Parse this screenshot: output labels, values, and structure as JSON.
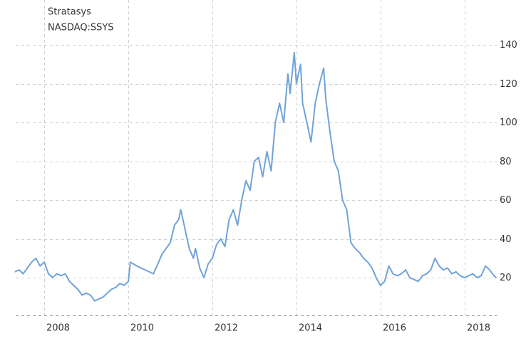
{
  "chart_data": {
    "type": "line",
    "title": "Stratasys",
    "subtitle": "NASDAQ:SSYS",
    "x": [
      2007.3,
      2007.4,
      2007.5,
      2007.6,
      2007.7,
      2007.8,
      2007.9,
      2008.0,
      2008.1,
      2008.2,
      2008.3,
      2008.4,
      2008.5,
      2008.6,
      2008.7,
      2008.8,
      2008.9,
      2009.0,
      2009.1,
      2009.2,
      2009.3,
      2009.4,
      2009.5,
      2009.6,
      2009.7,
      2009.8,
      2009.9,
      2010.0,
      2010.05,
      2010.2,
      2010.4,
      2010.6,
      2010.8,
      2010.9,
      2011.0,
      2011.1,
      2011.2,
      2011.25,
      2011.35,
      2011.45,
      2011.55,
      2011.6,
      2011.7,
      2011.8,
      2011.9,
      2012.0,
      2012.1,
      2012.2,
      2012.3,
      2012.4,
      2012.5,
      2012.6,
      2012.7,
      2012.8,
      2012.9,
      2013.0,
      2013.1,
      2013.2,
      2013.3,
      2013.4,
      2013.5,
      2013.6,
      2013.7,
      2013.8,
      2013.85,
      2013.95,
      2014.0,
      2014.1,
      2014.15,
      2014.25,
      2014.35,
      2014.45,
      2014.55,
      2014.65,
      2014.7,
      2014.8,
      2014.9,
      2015.0,
      2015.1,
      2015.2,
      2015.3,
      2015.4,
      2015.5,
      2015.6,
      2015.7,
      2015.8,
      2015.9,
      2016.0,
      2016.1,
      2016.2,
      2016.3,
      2016.4,
      2016.5,
      2016.6,
      2016.7,
      2016.8,
      2016.9,
      2017.0,
      2017.1,
      2017.2,
      2017.3,
      2017.4,
      2017.5,
      2017.6,
      2017.7,
      2017.8,
      2017.9,
      2018.0,
      2018.1,
      2018.2,
      2018.3,
      2018.4,
      2018.5,
      2018.6,
      2018.7,
      2018.76
    ],
    "series": [
      {
        "name": "SSYS",
        "color": "#6fa3d8",
        "values": [
          23,
          24,
          22,
          25,
          28,
          30,
          26,
          28,
          22,
          20,
          22,
          21,
          22,
          18,
          16,
          14,
          11,
          12,
          11,
          8,
          9,
          10,
          12,
          14,
          15,
          17,
          16,
          18,
          28,
          26,
          24,
          22,
          32,
          35,
          38,
          47,
          50,
          55,
          45,
          35,
          30,
          35,
          25,
          20,
          27,
          30,
          37,
          40,
          36,
          50,
          55,
          47,
          60,
          70,
          65,
          80,
          82,
          72,
          85,
          75,
          100,
          110,
          100,
          125,
          115,
          136,
          120,
          130,
          110,
          100,
          90,
          110,
          120,
          128,
          112,
          95,
          80,
          75,
          60,
          55,
          38,
          35,
          33,
          30,
          28,
          25,
          20,
          16,
          18,
          26,
          22,
          21,
          22,
          24,
          20,
          19,
          18,
          21,
          22,
          24,
          30,
          26,
          24,
          25,
          22,
          23,
          21,
          20,
          21,
          22,
          20,
          21,
          26,
          24,
          21,
          20
        ]
      }
    ],
    "xlim": [
      2007.32,
      2018.77
    ],
    "ylim": [
      0,
      160
    ],
    "xticks": [
      2008,
      2010,
      2012,
      2014,
      2016,
      2018
    ],
    "yticks": [
      20,
      40,
      60,
      80,
      100,
      120,
      140
    ],
    "grid": true
  }
}
